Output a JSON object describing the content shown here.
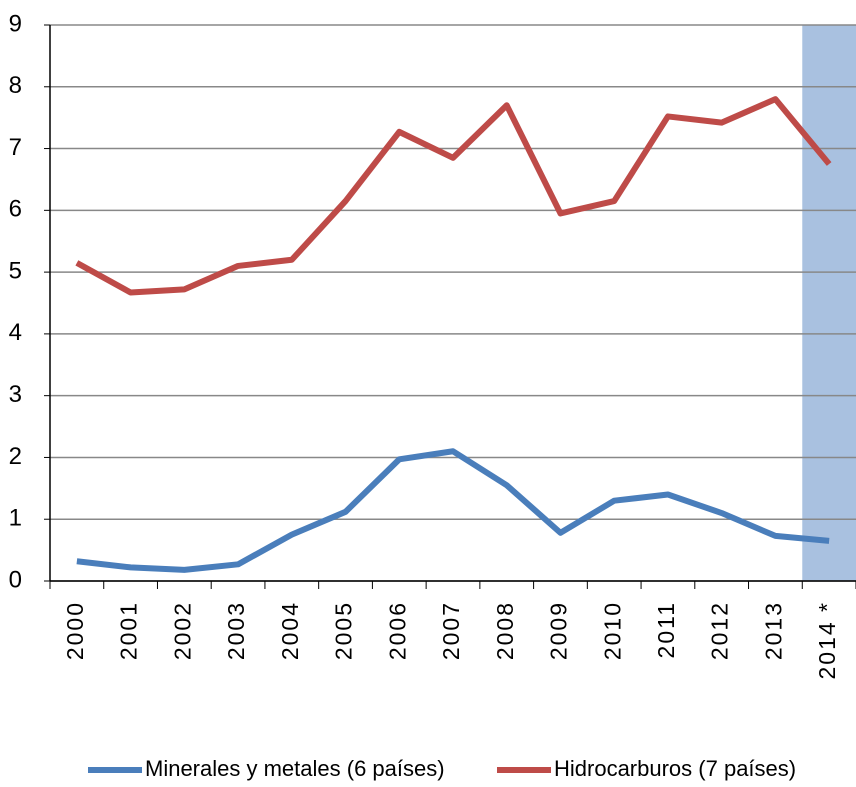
{
  "chart_data": {
    "type": "line",
    "categories": [
      "2000",
      "2001",
      "2002",
      "2003",
      "2004",
      "2005",
      "2006",
      "2007",
      "2008",
      "2009",
      "2010",
      "2011",
      "2012",
      "2013",
      "2014 *"
    ],
    "series": [
      {
        "name": "Minerales y metales (6 países)",
        "color": "#4a7ebb",
        "values": [
          0.32,
          0.22,
          0.18,
          0.27,
          0.75,
          1.12,
          1.97,
          2.1,
          1.55,
          0.78,
          1.3,
          1.4,
          1.1,
          0.73,
          0.65
        ]
      },
      {
        "name": "Hidrocarburos (7 países)",
        "color": "#be4b48",
        "values": [
          5.15,
          4.67,
          4.72,
          5.1,
          5.2,
          6.15,
          7.27,
          6.85,
          7.7,
          5.95,
          6.15,
          7.52,
          7.42,
          7.8,
          6.75
        ]
      }
    ],
    "ylim": [
      0,
      9
    ],
    "yticks": [
      0,
      1,
      2,
      3,
      4,
      5,
      6,
      7,
      8,
      9
    ],
    "grid": true,
    "legend": "bottom"
  }
}
